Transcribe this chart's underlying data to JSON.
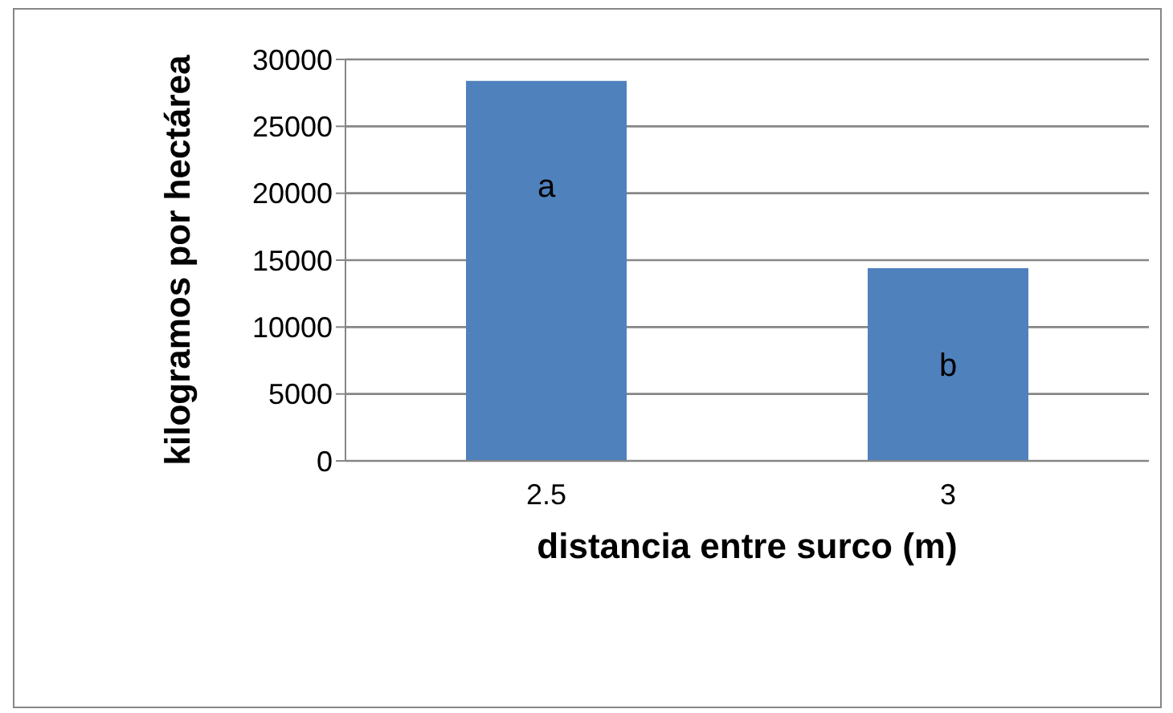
{
  "chart_data": {
    "type": "bar",
    "xlabel": "distancia entre surco (m)",
    "ylabel": "kilogramos por hectárea",
    "categories": [
      "2.5",
      "3"
    ],
    "values": [
      28400,
      14400
    ],
    "color": "#4f81bd",
    "ylim": [
      0,
      30000
    ],
    "yticks": [
      0,
      5000,
      10000,
      15000,
      20000,
      25000,
      30000
    ],
    "grid": "y",
    "annotations": [
      "a",
      "b"
    ]
  }
}
